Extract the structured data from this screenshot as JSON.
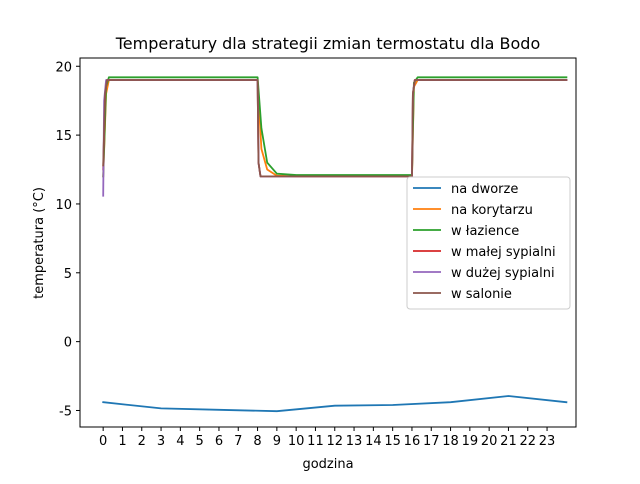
{
  "chart_data": {
    "type": "line",
    "title": "Temperatury dla strategii zmian termostatu dla Bodo",
    "xlabel": "godzina",
    "ylabel": "temperatura (°C)",
    "xlim": [
      -1.2,
      24.5
    ],
    "ylim": [
      -6.2,
      20.6
    ],
    "xticks": [
      0,
      1,
      2,
      3,
      4,
      5,
      6,
      7,
      8,
      9,
      10,
      11,
      12,
      13,
      14,
      15,
      16,
      17,
      18,
      19,
      20,
      21,
      22,
      23
    ],
    "xtick_labels": [
      "0",
      "1",
      "2",
      "3",
      "4",
      "5",
      "6",
      "7",
      "8",
      "9",
      "10",
      "11",
      "12",
      "13",
      "14",
      "15",
      "16",
      "17",
      "18",
      "19",
      "20",
      "21",
      "22",
      "23"
    ],
    "yticks": [
      -5,
      0,
      5,
      10,
      15,
      20
    ],
    "ytick_labels": [
      "-5",
      "0",
      "5",
      "10",
      "15",
      "20"
    ],
    "grid": false,
    "legend_position": "center-right",
    "series": [
      {
        "name": "na dworze",
        "color": "#1f77b4",
        "x": [
          0,
          3,
          6,
          9,
          12,
          15,
          18,
          21,
          24
        ],
        "y": [
          -4.4,
          -4.85,
          -4.95,
          -5.05,
          -4.65,
          -4.6,
          -4.4,
          -3.95,
          -4.4
        ]
      },
      {
        "name": "na korytarzu",
        "color": "#ff7f0e",
        "x": [
          0,
          0.15,
          0.3,
          1,
          8,
          8.2,
          8.5,
          9,
          10,
          16,
          16.1,
          16.3,
          24
        ],
        "y": [
          12.0,
          18.0,
          19.0,
          19.0,
          19.0,
          14.0,
          12.5,
          12.05,
          12.0,
          12.0,
          18.5,
          19.0,
          19.0
        ]
      },
      {
        "name": "w łazience",
        "color": "#2ca02c",
        "x": [
          0,
          0.15,
          0.3,
          1,
          8,
          8.2,
          8.5,
          9,
          10,
          16,
          16.1,
          16.3,
          24
        ],
        "y": [
          12.0,
          18.5,
          19.2,
          19.2,
          19.2,
          15.5,
          13.0,
          12.2,
          12.1,
          12.1,
          18.8,
          19.2,
          19.2
        ]
      },
      {
        "name": "w małej sypialni",
        "color": "#d62728",
        "x": [
          0,
          0.1,
          0.2,
          8,
          8.05,
          8.15,
          16,
          16.05,
          16.15,
          24
        ],
        "y": [
          12.5,
          18.0,
          19.0,
          19.0,
          13.0,
          12.0,
          12.0,
          18.0,
          19.0,
          19.0
        ]
      },
      {
        "name": "w dużej sypialni",
        "color": "#9467bd",
        "x": [
          0,
          0.05,
          0.15,
          8,
          8.05,
          8.15,
          16,
          16.05,
          16.15,
          24
        ],
        "y": [
          10.6,
          17.5,
          19.0,
          19.0,
          13.0,
          12.0,
          12.0,
          18.0,
          19.0,
          19.0
        ]
      },
      {
        "name": "w salonie",
        "color": "#8c564b",
        "x": [
          0,
          0.1,
          0.2,
          8,
          8.05,
          8.15,
          16,
          16.05,
          16.15,
          24
        ],
        "y": [
          12.8,
          18.0,
          19.0,
          19.0,
          13.0,
          12.0,
          12.0,
          18.0,
          19.0,
          19.0
        ]
      }
    ]
  }
}
